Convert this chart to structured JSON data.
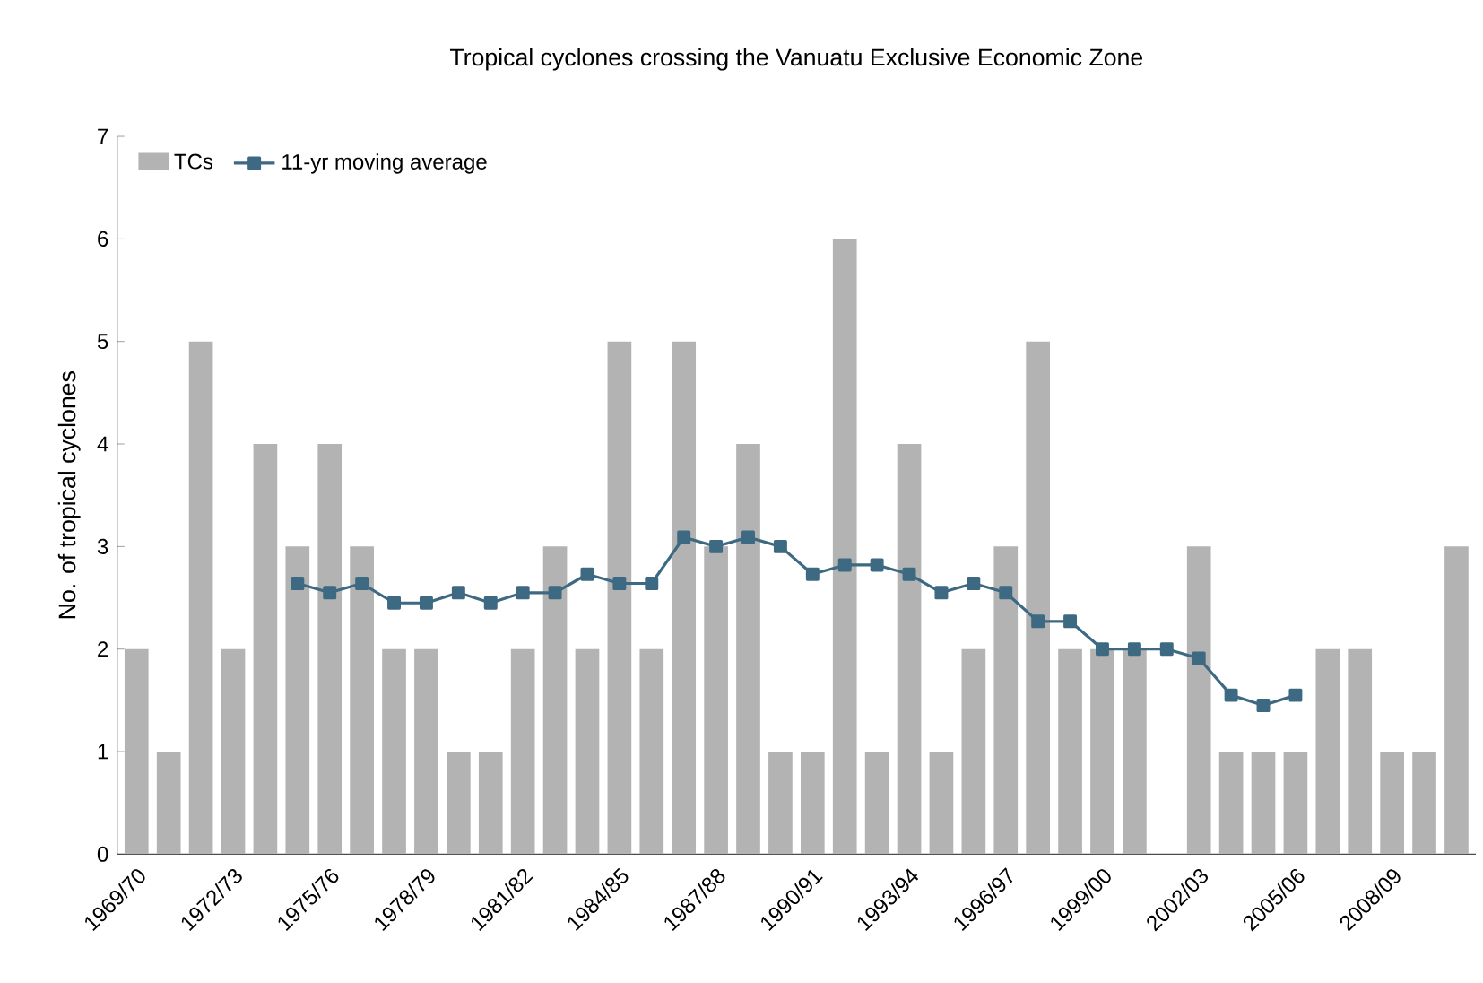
{
  "chart_data": {
    "type": "bar",
    "title": "Tropical cyclones crossing the Vanuatu Exclusive Economic Zone",
    "ylabel": "No. of tropical cyclones",
    "categories": [
      "1969/70",
      null,
      null,
      "1972/73",
      null,
      null,
      "1975/76",
      null,
      null,
      "1978/79",
      null,
      null,
      "1981/82",
      null,
      null,
      "1984/85",
      null,
      null,
      "1987/88",
      null,
      null,
      "1990/91",
      null,
      null,
      "1993/94",
      null,
      null,
      "1996/97",
      null,
      null,
      "1999/00",
      null,
      null,
      "2002/03",
      null,
      null,
      "2005/06",
      null,
      null,
      "2008/09",
      null,
      null
    ],
    "series": [
      {
        "name": "TCs",
        "color": "#b3b3b3",
        "values": [
          2,
          1,
          5,
          2,
          4,
          3,
          4,
          3,
          2,
          2,
          1,
          1,
          2,
          3,
          2,
          5,
          2,
          5,
          3,
          4,
          1,
          1,
          6,
          1,
          4,
          1,
          2,
          3,
          5,
          2,
          2,
          2,
          0,
          3,
          1,
          1,
          1,
          2,
          2,
          1,
          1,
          3
        ]
      },
      {
        "name": "11-yr moving average",
        "type": "line",
        "color": "#3d6a82",
        "marker": "square",
        "values": [
          null,
          null,
          null,
          null,
          null,
          2.64,
          2.55,
          2.64,
          2.45,
          2.45,
          2.55,
          2.45,
          2.55,
          2.55,
          2.73,
          2.64,
          2.64,
          3.09,
          3.0,
          3.09,
          3.0,
          2.73,
          2.82,
          2.82,
          2.73,
          2.55,
          2.64,
          2.55,
          2.27,
          2.27,
          2.0,
          2.0,
          2.0,
          1.91,
          1.55,
          1.45,
          1.55,
          null,
          null,
          null,
          null,
          null
        ]
      }
    ],
    "ylim": [
      0,
      7
    ],
    "yticks": [
      0,
      1,
      2,
      3,
      4,
      5,
      6,
      7
    ],
    "legend": "top left"
  }
}
